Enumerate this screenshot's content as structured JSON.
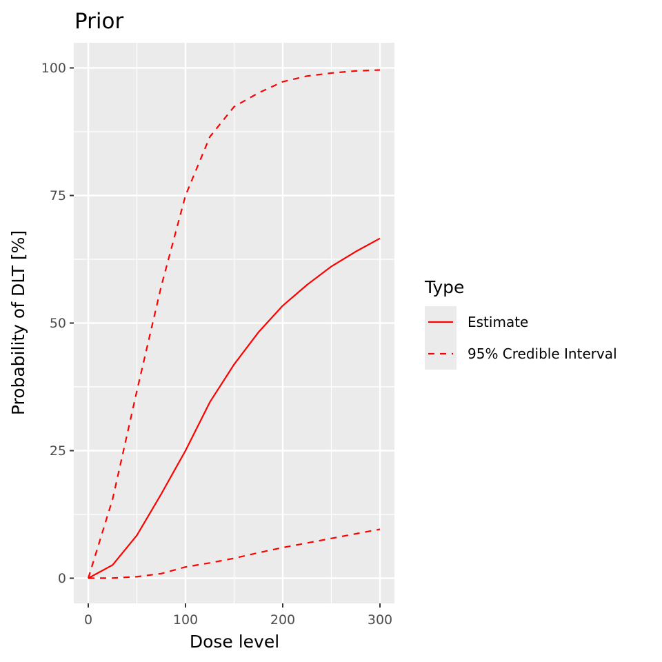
{
  "chart_data": {
    "type": "line",
    "title": "Prior",
    "xlabel": "Dose level",
    "ylabel": "Probability of DLT [%]",
    "x": [
      0,
      25,
      50,
      75,
      100,
      125,
      150,
      175,
      200,
      225,
      250,
      275,
      300
    ],
    "series": [
      {
        "name": "Estimate",
        "linetype": "solid",
        "color": "#ff0000",
        "values": [
          0,
          2.6,
          8.4,
          16.5,
          25.0,
          34.5,
          41.9,
          48.2,
          53.4,
          57.5,
          61.1,
          64.0,
          66.6
        ]
      },
      {
        "name": "95% Credible Interval (upper)",
        "linetype": "dashed",
        "color": "#ff0000",
        "values": [
          0,
          15.5,
          36.7,
          57.2,
          75.0,
          86.5,
          92.4,
          95.1,
          97.3,
          98.4,
          99.0,
          99.4,
          99.6
        ]
      },
      {
        "name": "95% Credible Interval (lower)",
        "linetype": "dashed",
        "color": "#ff0000",
        "values": [
          0,
          0.03,
          0.3,
          0.9,
          2.2,
          3.0,
          3.9,
          5.0,
          6.0,
          6.9,
          7.8,
          8.7,
          9.6
        ]
      }
    ],
    "xlim": [
      -14,
      315
    ],
    "ylim": [
      -5,
      105
    ],
    "xticks": [
      0,
      100,
      200,
      300
    ],
    "yticks": [
      0,
      25,
      50,
      75,
      100
    ],
    "grid": true,
    "panel_background": "#ebebeb",
    "legend": {
      "title": "Type",
      "position": "right",
      "entries": [
        {
          "label": "Estimate",
          "linetype": "solid",
          "color": "#ff0000"
        },
        {
          "label": "95% Credible Interval",
          "linetype": "dashed",
          "color": "#ff0000"
        }
      ]
    }
  },
  "labels": {
    "title": "Prior",
    "xlabel": "Dose level",
    "ylabel": "Probability of DLT [%]",
    "xticks": [
      "0",
      "100",
      "200",
      "300"
    ],
    "yticks": [
      "0",
      "25",
      "50",
      "75",
      "100"
    ],
    "legend_title": "Type",
    "legend_estimate": "Estimate",
    "legend_ci": "95% Credible Interval"
  }
}
